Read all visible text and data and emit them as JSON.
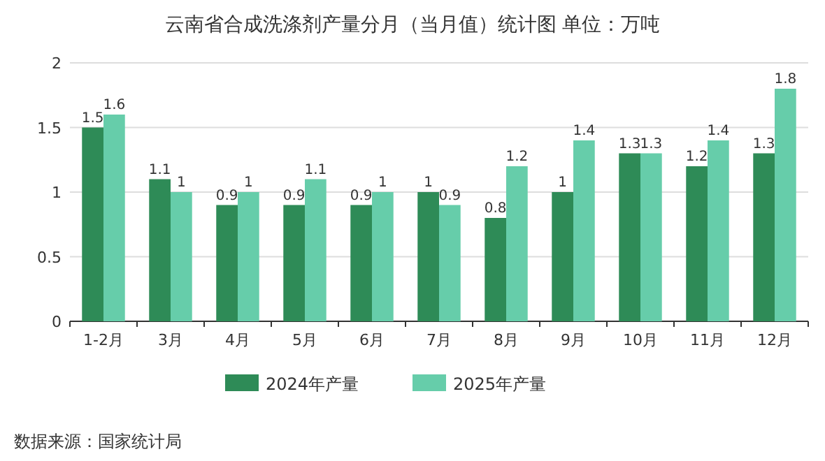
{
  "chart_data": {
    "type": "bar",
    "title": "云南省合成洗涤剂产量分月（当月值）统计图 单位：万吨",
    "categories": [
      "1-2月",
      "3月",
      "4月",
      "5月",
      "6月",
      "7月",
      "8月",
      "9月",
      "10月",
      "11月",
      "12月"
    ],
    "series": [
      {
        "name": "2024年产量",
        "color": "#2e8b57",
        "values": [
          1.5,
          1.1,
          0.9,
          0.9,
          0.9,
          1,
          0.8,
          1,
          1.3,
          1.2,
          1.3
        ]
      },
      {
        "name": "2025年产量",
        "color": "#66cdaa",
        "values": [
          1.6,
          1,
          1,
          1.1,
          1,
          0.9,
          1.2,
          1.4,
          1.3,
          1.4,
          1.8
        ]
      }
    ],
    "ylim": [
      0,
      2
    ],
    "yticks": [
      0,
      0.5,
      1,
      1.5,
      2
    ],
    "grid": "y",
    "legend": "bottom",
    "data_labels": true,
    "annotations": [
      "数据来源：国家统计局"
    ]
  }
}
